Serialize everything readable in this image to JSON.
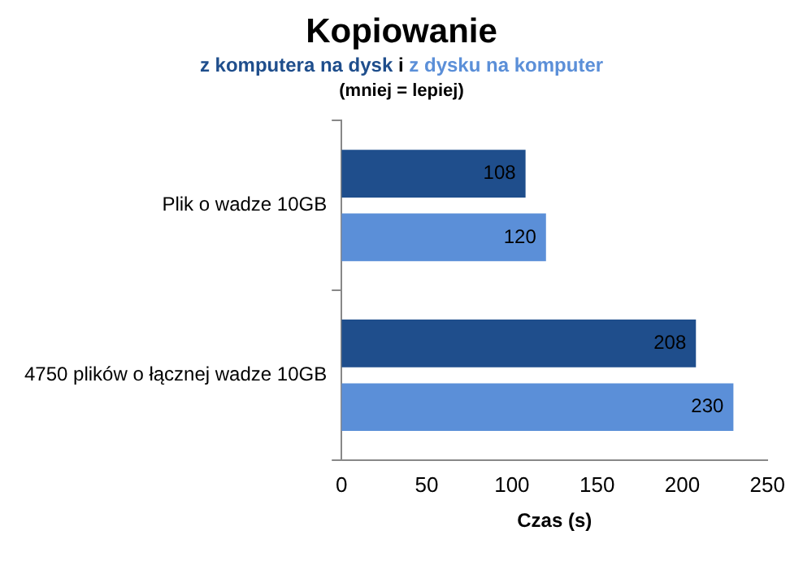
{
  "chart_data": {
    "type": "bar",
    "orientation": "horizontal",
    "title": "Kopiowanie",
    "subtitle": "(mniej = lepiej)",
    "annotations": [
      "i"
    ],
    "xlabel": "Czas (s)",
    "categories": [
      "Plik o wadze 10GB",
      "4750 plików o łącznej wadze 10GB"
    ],
    "series": [
      {
        "name": "z komputera na dysk",
        "color": "#1f4e8c",
        "values": [
          108,
          208
        ]
      },
      {
        "name": "z dysku na komputer",
        "color": "#5b8fd8",
        "values": [
          120,
          230
        ]
      }
    ],
    "xlim": [
      0,
      250
    ],
    "xticks": [
      0,
      50,
      100,
      150,
      200,
      250
    ],
    "grid": false,
    "legend": "top",
    "data_labels": true
  }
}
